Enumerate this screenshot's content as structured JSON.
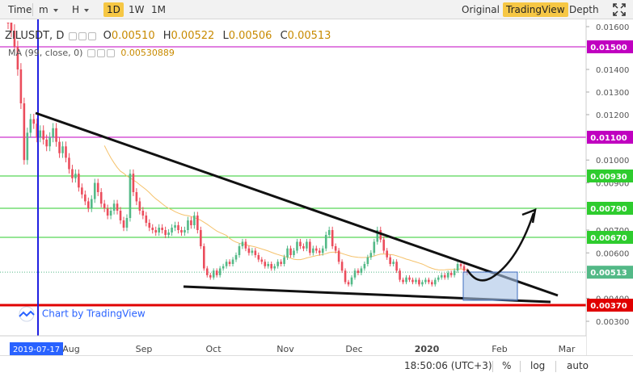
{
  "toolbar": {
    "time_label": "Time",
    "minutes_label": "m",
    "hours_label": "H",
    "day_label": "1D",
    "week_label": "1W",
    "month_label": "1M",
    "original_label": "Original",
    "tradingview_label": "TradingView",
    "depth_label": "Depth"
  },
  "legend": {
    "symbol": "ZILUSDT, D",
    "open_label": "O",
    "open_value": "0.00510",
    "high_label": "H",
    "high_value": "0.00522",
    "low_label": "L",
    "low_value": "0.00506",
    "close_label": "C",
    "close_value": "0.00513",
    "ma_label": "MA (99, close, 0)",
    "ma_value": "0.00530889"
  },
  "watermark": "Chart by TradingView",
  "colors": {
    "candle_up": "#53b987",
    "candle_down": "#eb4d5c",
    "ma": "#f5c26b",
    "magenta_line": "#c000c0",
    "green_line": "#2ecc2e",
    "red_line": "#e00000",
    "date_line": "#2020e0",
    "accent": "#f6c744",
    "forecast_box": "#a9c3e6"
  },
  "chart_data": {
    "type": "candlestick",
    "symbol": "ZILUSDT",
    "interval": "D",
    "y_ticks": [
      "0.01600",
      "0.01400",
      "0.01300",
      "0.01200",
      "0.01000",
      "0.00900",
      "0.00700",
      "0.00600",
      "0.00400",
      "0.00300"
    ],
    "x_ticks": [
      "Aug",
      "Sep",
      "Oct",
      "Nov",
      "Dec",
      "2020",
      "Feb",
      "Mar"
    ],
    "x_start_label": "2019-07-17",
    "current_price": "0.00513",
    "horizontal_levels": [
      {
        "value": 0.015,
        "label": "0.01500",
        "color": "magenta"
      },
      {
        "value": 0.011,
        "label": "0.01100",
        "color": "magenta"
      },
      {
        "value": 0.0093,
        "label": "0.00930",
        "color": "green"
      },
      {
        "value": 0.0079,
        "label": "0.00790",
        "color": "green"
      },
      {
        "value": 0.0067,
        "label": "0.00670",
        "color": "green"
      },
      {
        "value": 0.0037,
        "label": "0.00370",
        "color": "red"
      }
    ],
    "series": [
      {
        "name": "ZILUSDT",
        "close": [
          0.0162,
          0.0158,
          0.015,
          0.014,
          0.0125,
          0.01,
          0.0112,
          0.0118,
          0.0116,
          0.011,
          0.0113,
          0.0109,
          0.0106,
          0.011,
          0.0114,
          0.0108,
          0.0103,
          0.0106,
          0.0101,
          0.0096,
          0.0092,
          0.0094,
          0.0088,
          0.0085,
          0.0082,
          0.0079,
          0.0083,
          0.009,
          0.0086,
          0.0081,
          0.0079,
          0.0076,
          0.0078,
          0.0081,
          0.0078,
          0.0074,
          0.0071,
          0.0075,
          0.0094,
          0.0086,
          0.0082,
          0.0078,
          0.0076,
          0.0073,
          0.0071,
          0.007,
          0.0069,
          0.0071,
          0.007,
          0.0068,
          0.0069,
          0.0071,
          0.0072,
          0.007,
          0.0069,
          0.007,
          0.0074,
          0.0072,
          0.0076,
          0.007,
          0.0063,
          0.0053,
          0.005,
          0.0049,
          0.0052,
          0.005,
          0.0053,
          0.0054,
          0.0056,
          0.0055,
          0.0057,
          0.0059,
          0.0063,
          0.0065,
          0.0062,
          0.006,
          0.0061,
          0.0059,
          0.0057,
          0.0056,
          0.0054,
          0.0055,
          0.0053,
          0.0054,
          0.0056,
          0.0055,
          0.0058,
          0.0062,
          0.0059,
          0.0061,
          0.0065,
          0.0063,
          0.0062,
          0.0065,
          0.006,
          0.0062,
          0.0061,
          0.006,
          0.0062,
          0.0068,
          0.007,
          0.0063,
          0.0061,
          0.0056,
          0.0052,
          0.0047,
          0.0046,
          0.0049,
          0.0052,
          0.0051,
          0.0053,
          0.0055,
          0.0058,
          0.006,
          0.0065,
          0.007,
          0.0066,
          0.0061,
          0.0058,
          0.0055,
          0.0056,
          0.0052,
          0.0048,
          0.0047,
          0.0049,
          0.0048,
          0.0047,
          0.0048,
          0.0046,
          0.0047,
          0.0048,
          0.0047,
          0.0046,
          0.0048,
          0.0049,
          0.005,
          0.0049,
          0.0051,
          0.005,
          0.0052,
          0.0055,
          0.0054,
          0.0052,
          0.0051
        ]
      }
    ],
    "ma": {
      "period": 99,
      "value": 0.00530889
    }
  },
  "bottom_bar": {
    "time": "18:50:06 (UTC+3)",
    "percent": "%",
    "log": "log",
    "auto": "auto"
  }
}
